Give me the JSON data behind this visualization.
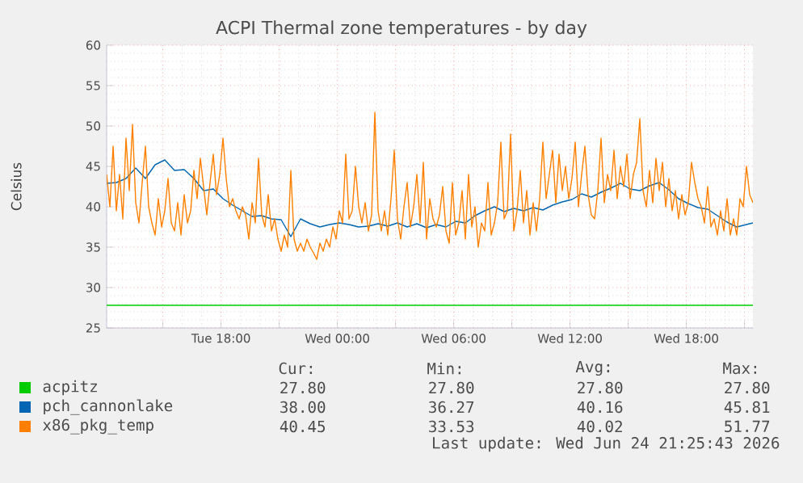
{
  "chart_data": {
    "type": "line",
    "title": "ACPI Thermal zone temperatures - by day",
    "ylabel": "Celsius",
    "xlim": [
      "2026-06-23T12:06",
      "2026-06-24T21:26"
    ],
    "ylim": [
      25,
      60
    ],
    "xticks": [
      {
        "value": "2026-06-23T15:00",
        "label": null
      },
      {
        "value": "2026-06-23T18:00",
        "label": "Tue 18:00"
      },
      {
        "value": "2026-06-23T21:00",
        "label": null
      },
      {
        "value": "2026-06-24T00:00",
        "label": "Wed 00:00"
      },
      {
        "value": "2026-06-24T03:00",
        "label": null
      },
      {
        "value": "2026-06-24T06:00",
        "label": "Wed 06:00"
      },
      {
        "value": "2026-06-24T09:00",
        "label": null
      },
      {
        "value": "2026-06-24T12:00",
        "label": "Wed 12:00"
      },
      {
        "value": "2026-06-24T15:00",
        "label": null
      },
      {
        "value": "2026-06-24T18:00",
        "label": "Wed 18:00"
      },
      {
        "value": "2026-06-24T21:00",
        "label": null
      }
    ],
    "yticks": [
      25,
      30,
      35,
      40,
      45,
      50,
      55,
      60
    ],
    "grid": true,
    "legend": "bottom",
    "series": [
      {
        "name": "acpitz",
        "color": "#00cc00",
        "x": [
          "2026-06-23T12:06",
          "2026-06-24T21:26"
        ],
        "values": [
          27.8,
          27.8
        ]
      },
      {
        "name": "pch_cannonlake",
        "color": "#0066b3",
        "x": [
          "2026-06-23T12:06",
          "2026-06-23T12:36",
          "2026-06-23T13:06",
          "2026-06-23T13:36",
          "2026-06-23T14:06",
          "2026-06-23T14:36",
          "2026-06-23T15:06",
          "2026-06-23T15:36",
          "2026-06-23T16:06",
          "2026-06-23T16:36",
          "2026-06-23T17:06",
          "2026-06-23T17:36",
          "2026-06-23T18:06",
          "2026-06-23T18:36",
          "2026-06-23T19:06",
          "2026-06-23T19:36",
          "2026-06-23T20:06",
          "2026-06-23T20:36",
          "2026-06-23T21:06",
          "2026-06-23T21:36",
          "2026-06-23T22:06",
          "2026-06-23T22:36",
          "2026-06-23T23:06",
          "2026-06-23T23:36",
          "2026-06-24T00:06",
          "2026-06-24T00:36",
          "2026-06-24T01:06",
          "2026-06-24T01:36",
          "2026-06-24T02:06",
          "2026-06-24T02:36",
          "2026-06-24T03:06",
          "2026-06-24T03:36",
          "2026-06-24T04:06",
          "2026-06-24T04:36",
          "2026-06-24T05:06",
          "2026-06-24T05:36",
          "2026-06-24T06:06",
          "2026-06-24T06:36",
          "2026-06-24T07:06",
          "2026-06-24T07:36",
          "2026-06-24T08:06",
          "2026-06-24T08:36",
          "2026-06-24T09:06",
          "2026-06-24T09:36",
          "2026-06-24T10:06",
          "2026-06-24T10:36",
          "2026-06-24T11:06",
          "2026-06-24T11:36",
          "2026-06-24T12:06",
          "2026-06-24T12:36",
          "2026-06-24T13:06",
          "2026-06-24T13:36",
          "2026-06-24T14:06",
          "2026-06-24T14:36",
          "2026-06-24T15:06",
          "2026-06-24T15:36",
          "2026-06-24T16:06",
          "2026-06-24T16:36",
          "2026-06-24T17:06",
          "2026-06-24T17:36",
          "2026-06-24T18:06",
          "2026-06-24T18:36",
          "2026-06-24T19:06",
          "2026-06-24T19:36",
          "2026-06-24T20:06",
          "2026-06-24T20:36",
          "2026-06-24T21:06",
          "2026-06-24T21:26"
        ],
        "values": [
          42.9,
          43.0,
          43.5,
          44.8,
          43.5,
          45.2,
          45.8,
          44.5,
          44.6,
          43.5,
          42.0,
          42.2,
          41.0,
          40.2,
          39.5,
          38.8,
          38.9,
          38.5,
          38.4,
          36.3,
          38.5,
          37.9,
          37.5,
          37.8,
          38.0,
          37.8,
          37.5,
          37.6,
          37.9,
          37.6,
          38.0,
          37.5,
          37.9,
          37.4,
          37.8,
          37.5,
          38.2,
          38.0,
          38.9,
          39.5,
          40.0,
          39.4,
          39.8,
          39.5,
          39.9,
          39.6,
          40.2,
          40.6,
          40.9,
          41.6,
          41.2,
          41.8,
          42.3,
          42.9,
          42.2,
          42.0,
          42.6,
          43.0,
          42.1,
          41.0,
          40.4,
          39.9,
          39.7,
          38.9,
          38.1,
          37.5,
          37.8,
          38.0
        ]
      },
      {
        "name": "x86_pkg_temp",
        "color": "#ff8000",
        "x": [
          "2026-06-23T12:06",
          "2026-06-23T12:16",
          "2026-06-23T12:26",
          "2026-06-23T12:36",
          "2026-06-23T12:46",
          "2026-06-23T12:56",
          "2026-06-23T13:06",
          "2026-06-23T13:16",
          "2026-06-23T13:26",
          "2026-06-23T13:36",
          "2026-06-23T13:46",
          "2026-06-23T13:56",
          "2026-06-23T14:06",
          "2026-06-23T14:16",
          "2026-06-23T14:26",
          "2026-06-23T14:36",
          "2026-06-23T14:46",
          "2026-06-23T14:56",
          "2026-06-23T15:06",
          "2026-06-23T15:16",
          "2026-06-23T15:26",
          "2026-06-23T15:36",
          "2026-06-23T15:46",
          "2026-06-23T15:56",
          "2026-06-23T16:06",
          "2026-06-23T16:16",
          "2026-06-23T16:26",
          "2026-06-23T16:36",
          "2026-06-23T16:46",
          "2026-06-23T16:56",
          "2026-06-23T17:06",
          "2026-06-23T17:16",
          "2026-06-23T17:26",
          "2026-06-23T17:36",
          "2026-06-23T17:46",
          "2026-06-23T17:56",
          "2026-06-23T18:06",
          "2026-06-23T18:16",
          "2026-06-23T18:26",
          "2026-06-23T18:36",
          "2026-06-23T18:46",
          "2026-06-23T18:56",
          "2026-06-23T19:06",
          "2026-06-23T19:16",
          "2026-06-23T19:26",
          "2026-06-23T19:36",
          "2026-06-23T19:46",
          "2026-06-23T19:56",
          "2026-06-23T20:06",
          "2026-06-23T20:16",
          "2026-06-23T20:26",
          "2026-06-23T20:36",
          "2026-06-23T20:46",
          "2026-06-23T20:56",
          "2026-06-23T21:06",
          "2026-06-23T21:16",
          "2026-06-23T21:26",
          "2026-06-23T21:36",
          "2026-06-23T21:46",
          "2026-06-23T21:56",
          "2026-06-23T22:06",
          "2026-06-23T22:16",
          "2026-06-23T22:26",
          "2026-06-23T22:36",
          "2026-06-23T22:46",
          "2026-06-23T22:56",
          "2026-06-23T23:06",
          "2026-06-23T23:16",
          "2026-06-23T23:26",
          "2026-06-23T23:36",
          "2026-06-23T23:46",
          "2026-06-23T23:56",
          "2026-06-24T00:06",
          "2026-06-24T00:16",
          "2026-06-24T00:26",
          "2026-06-24T00:36",
          "2026-06-24T00:46",
          "2026-06-24T00:56",
          "2026-06-24T01:06",
          "2026-06-24T01:16",
          "2026-06-24T01:26",
          "2026-06-24T01:36",
          "2026-06-24T01:46",
          "2026-06-24T01:56",
          "2026-06-24T02:06",
          "2026-06-24T02:16",
          "2026-06-24T02:26",
          "2026-06-24T02:36",
          "2026-06-24T02:46",
          "2026-06-24T02:56",
          "2026-06-24T03:06",
          "2026-06-24T03:16",
          "2026-06-24T03:26",
          "2026-06-24T03:36",
          "2026-06-24T03:46",
          "2026-06-24T03:56",
          "2026-06-24T04:06",
          "2026-06-24T04:16",
          "2026-06-24T04:26",
          "2026-06-24T04:36",
          "2026-06-24T04:46",
          "2026-06-24T04:56",
          "2026-06-24T05:06",
          "2026-06-24T05:16",
          "2026-06-24T05:26",
          "2026-06-24T05:36",
          "2026-06-24T05:46",
          "2026-06-24T05:56",
          "2026-06-24T06:06",
          "2026-06-24T06:16",
          "2026-06-24T06:26",
          "2026-06-24T06:36",
          "2026-06-24T06:46",
          "2026-06-24T06:56",
          "2026-06-24T07:06",
          "2026-06-24T07:16",
          "2026-06-24T07:26",
          "2026-06-24T07:36",
          "2026-06-24T07:46",
          "2026-06-24T07:56",
          "2026-06-24T08:06",
          "2026-06-24T08:16",
          "2026-06-24T08:26",
          "2026-06-24T08:36",
          "2026-06-24T08:46",
          "2026-06-24T08:56",
          "2026-06-24T09:06",
          "2026-06-24T09:16",
          "2026-06-24T09:26",
          "2026-06-24T09:36",
          "2026-06-24T09:46",
          "2026-06-24T09:56",
          "2026-06-24T10:06",
          "2026-06-24T10:16",
          "2026-06-24T10:26",
          "2026-06-24T10:36",
          "2026-06-24T10:46",
          "2026-06-24T10:56",
          "2026-06-24T11:06",
          "2026-06-24T11:16",
          "2026-06-24T11:26",
          "2026-06-24T11:36",
          "2026-06-24T11:46",
          "2026-06-24T11:56",
          "2026-06-24T12:06",
          "2026-06-24T12:16",
          "2026-06-24T12:26",
          "2026-06-24T12:36",
          "2026-06-24T12:46",
          "2026-06-24T12:56",
          "2026-06-24T13:06",
          "2026-06-24T13:16",
          "2026-06-24T13:26",
          "2026-06-24T13:36",
          "2026-06-24T13:46",
          "2026-06-24T13:56",
          "2026-06-24T14:06",
          "2026-06-24T14:16",
          "2026-06-24T14:26",
          "2026-06-24T14:36",
          "2026-06-24T14:46",
          "2026-06-24T14:56",
          "2026-06-24T15:06",
          "2026-06-24T15:16",
          "2026-06-24T15:26",
          "2026-06-24T15:36",
          "2026-06-24T15:46",
          "2026-06-24T15:56",
          "2026-06-24T16:06",
          "2026-06-24T16:16",
          "2026-06-24T16:26",
          "2026-06-24T16:36",
          "2026-06-24T16:46",
          "2026-06-24T16:56",
          "2026-06-24T17:06",
          "2026-06-24T17:16",
          "2026-06-24T17:26",
          "2026-06-24T17:36",
          "2026-06-24T17:46",
          "2026-06-24T17:56",
          "2026-06-24T18:06",
          "2026-06-24T18:16",
          "2026-06-24T18:26",
          "2026-06-24T18:36",
          "2026-06-24T18:46",
          "2026-06-24T18:56",
          "2026-06-24T19:06",
          "2026-06-24T19:16",
          "2026-06-24T19:26",
          "2026-06-24T19:36",
          "2026-06-24T19:46",
          "2026-06-24T19:56",
          "2026-06-24T20:06",
          "2026-06-24T20:16",
          "2026-06-24T20:26",
          "2026-06-24T20:36",
          "2026-06-24T20:46",
          "2026-06-24T20:56",
          "2026-06-24T21:06",
          "2026-06-24T21:16",
          "2026-06-24T21:26"
        ],
        "values": [
          44.0,
          40.0,
          47.5,
          39.5,
          44.0,
          38.5,
          48.5,
          42.0,
          50.2,
          40.5,
          38.0,
          43.0,
          47.5,
          40.0,
          38.0,
          36.5,
          41.0,
          37.5,
          39.5,
          43.5,
          38.0,
          37.0,
          40.5,
          36.5,
          41.5,
          38.0,
          39.5,
          44.5,
          41.0,
          46.0,
          42.5,
          39.0,
          43.0,
          46.5,
          41.5,
          44.0,
          48.5,
          43.5,
          40.0,
          41.0,
          39.5,
          38.5,
          40.0,
          39.0,
          36.0,
          40.5,
          38.0,
          46.0,
          39.0,
          37.5,
          41.5,
          37.0,
          38.5,
          36.0,
          34.5,
          36.5,
          35.0,
          44.5,
          36.0,
          34.5,
          35.5,
          34.5,
          36.0,
          35.0,
          34.3,
          33.5,
          35.5,
          34.5,
          36.0,
          35.0,
          37.5,
          36.0,
          39.5,
          38.0,
          46.5,
          38.5,
          39.5,
          45.0,
          40.0,
          38.0,
          40.5,
          37.0,
          39.0,
          51.7,
          39.5,
          37.0,
          39.5,
          36.5,
          41.0,
          47.0,
          38.5,
          36.0,
          40.0,
          43.0,
          37.5,
          40.0,
          44.0,
          38.0,
          45.5,
          36.0,
          41.0,
          38.5,
          37.5,
          39.0,
          42.5,
          37.0,
          35.5,
          43.0,
          36.5,
          38.0,
          42.0,
          36.0,
          44.0,
          37.5,
          40.0,
          35.0,
          38.0,
          37.0,
          43.0,
          36.5,
          38.0,
          40.5,
          48.0,
          38.5,
          39.5,
          49.0,
          37.0,
          39.5,
          44.5,
          38.0,
          42.0,
          36.5,
          40.5,
          37.0,
          41.0,
          48.0,
          41.0,
          44.0,
          47.0,
          40.5,
          46.5,
          42.0,
          45.0,
          41.0,
          43.5,
          48.0,
          40.0,
          44.0,
          47.5,
          41.5,
          39.0,
          38.5,
          42.0,
          48.5,
          40.5,
          44.0,
          42.0,
          47.0,
          41.0,
          45.0,
          42.5,
          46.5,
          41.0,
          44.0,
          45.5,
          50.9,
          42.0,
          40.0,
          44.5,
          40.5,
          46.0,
          42.0,
          45.5,
          40.0,
          43.5,
          39.5,
          42.0,
          38.5,
          41.5,
          39.0,
          40.5,
          45.5,
          43.0,
          41.0,
          40.0,
          38.0,
          42.5,
          37.5,
          38.5,
          36.5,
          39.5,
          37.0,
          41.0,
          36.5,
          38.5,
          36.5,
          41.0,
          40.0,
          45.0,
          41.5,
          40.5
        ]
      }
    ],
    "annotations": [
      "Cur:",
      "Min:",
      "Avg:",
      "Max:",
      "27.80",
      "27.80",
      "27.80",
      "27.80",
      "38.00",
      "36.27",
      "40.16",
      "45.81",
      "40.45",
      "33.53",
      "40.02",
      "51.77",
      "Last update: Wed Jun 24 21:25:43 2026"
    ]
  }
}
